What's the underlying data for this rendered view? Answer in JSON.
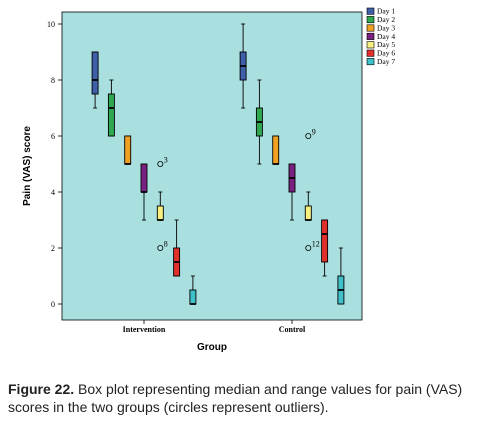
{
  "chart_data": {
    "type": "boxplot",
    "xlabel": "Group",
    "ylabel": "Pain (VAS) score",
    "ylim": [
      0,
      10
    ],
    "y_ticks": [
      0,
      2,
      4,
      6,
      8,
      10
    ],
    "categories": [
      "Intervention",
      "Control"
    ],
    "legend_position": "right",
    "background_color": "#a9dfdf",
    "series": [
      {
        "name": "Day 1",
        "color": "#3f5fa8",
        "boxes": [
          {
            "min": 7,
            "q1": 7.5,
            "median": 8,
            "q3": 9,
            "max": 9
          },
          {
            "min": 7,
            "q1": 8,
            "median": 8.5,
            "q3": 9,
            "max": 10
          }
        ]
      },
      {
        "name": "Day 2",
        "color": "#2fa84f",
        "boxes": [
          {
            "min": 6,
            "q1": 6,
            "median": 7,
            "q3": 7.5,
            "max": 8
          },
          {
            "min": 5,
            "q1": 6,
            "median": 6.5,
            "q3": 7,
            "max": 8
          }
        ]
      },
      {
        "name": "Day 3",
        "color": "#f0a020",
        "boxes": [
          {
            "min": 5,
            "q1": 5,
            "median": 5,
            "q3": 6,
            "max": 6
          },
          {
            "min": 5,
            "q1": 5,
            "median": 5,
            "q3": 6,
            "max": 6
          }
        ]
      },
      {
        "name": "Day 4",
        "color": "#7a2080",
        "boxes": [
          {
            "min": 3,
            "q1": 4,
            "median": 4,
            "q3": 5,
            "max": 5
          },
          {
            "min": 3,
            "q1": 4,
            "median": 4.5,
            "q3": 5,
            "max": 5
          }
        ]
      },
      {
        "name": "Day 5",
        "color": "#f7f080",
        "boxes": [
          {
            "min": 3,
            "q1": 3,
            "median": 3,
            "q3": 3.5,
            "max": 4
          },
          {
            "min": 3,
            "q1": 3,
            "median": 3,
            "q3": 3.5,
            "max": 4
          }
        ]
      },
      {
        "name": "Day 6",
        "color": "#e0302a",
        "boxes": [
          {
            "min": 1,
            "q1": 1,
            "median": 1.5,
            "q3": 2,
            "max": 3
          },
          {
            "min": 1,
            "q1": 1.5,
            "median": 2.5,
            "q3": 3,
            "max": 3
          }
        ]
      },
      {
        "name": "Day 7",
        "color": "#40c0c8",
        "boxes": [
          {
            "min": 0,
            "q1": 0,
            "median": 0,
            "q3": 0.5,
            "max": 1
          },
          {
            "min": 0,
            "q1": 0,
            "median": 0.5,
            "q3": 1,
            "max": 2
          }
        ]
      }
    ],
    "outliers": [
      {
        "group": "Intervention",
        "series": "Day 5",
        "value": 5,
        "label": "3"
      },
      {
        "group": "Intervention",
        "series": "Day 5",
        "value": 2,
        "label": "8"
      },
      {
        "group": "Control",
        "series": "Day 5",
        "value": 6,
        "label": "9"
      },
      {
        "group": "Control",
        "series": "Day 5",
        "value": 2,
        "label": "12"
      }
    ]
  },
  "caption": {
    "label": "Figure 22.",
    "text": " Box plot representing median and range values for pain (VAS) scores in the two groups (circles represent outliers)."
  }
}
